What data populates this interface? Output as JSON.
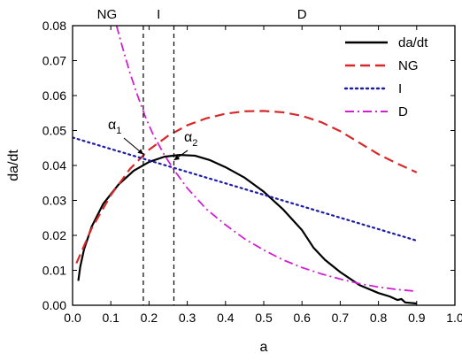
{
  "chart_data": {
    "type": "line",
    "xlabel": "a",
    "ylabel": "da/dt",
    "xlim": [
      0.0,
      1.0
    ],
    "ylim": [
      0.0,
      0.08
    ],
    "x_ticks": [
      "0.0",
      "0.1",
      "0.2",
      "0.3",
      "0.4",
      "0.5",
      "0.6",
      "0.7",
      "0.8",
      "0.9",
      "1.0"
    ],
    "y_ticks": [
      "0.00",
      "0.01",
      "0.02",
      "0.03",
      "0.04",
      "0.05",
      "0.06",
      "0.07",
      "0.08"
    ],
    "grid": false,
    "legend_position": "top-right",
    "regions": [
      {
        "label": "NG",
        "x_center": 0.09
      },
      {
        "label": "I",
        "x_center": 0.225
      },
      {
        "label": "D",
        "x_center": 0.6
      }
    ],
    "vlines": [
      0.185,
      0.265
    ],
    "annotations": [
      {
        "base": "α",
        "sub": "1",
        "x": 0.185,
        "y": 0.0432
      },
      {
        "base": "α",
        "sub": "2",
        "x": 0.265,
        "y": 0.0415
      }
    ],
    "series": [
      {
        "name": "da/dt",
        "color": "#000000",
        "style": "solid",
        "points": [
          [
            0.015,
            0.007
          ],
          [
            0.02,
            0.011
          ],
          [
            0.03,
            0.016
          ],
          [
            0.05,
            0.0225
          ],
          [
            0.08,
            0.029
          ],
          [
            0.12,
            0.0345
          ],
          [
            0.16,
            0.0385
          ],
          [
            0.2,
            0.041
          ],
          [
            0.24,
            0.0425
          ],
          [
            0.28,
            0.043
          ],
          [
            0.32,
            0.0428
          ],
          [
            0.36,
            0.0415
          ],
          [
            0.4,
            0.0395
          ],
          [
            0.45,
            0.0365
          ],
          [
            0.5,
            0.0325
          ],
          [
            0.55,
            0.0275
          ],
          [
            0.6,
            0.0215
          ],
          [
            0.63,
            0.0165
          ],
          [
            0.66,
            0.013
          ],
          [
            0.7,
            0.0095
          ],
          [
            0.75,
            0.0058
          ],
          [
            0.8,
            0.0035
          ],
          [
            0.83,
            0.0025
          ],
          [
            0.85,
            0.0015
          ],
          [
            0.86,
            0.0018
          ],
          [
            0.87,
            0.0008
          ],
          [
            0.9,
            0.0005
          ]
        ]
      },
      {
        "name": "NG",
        "color": "#d62a2a",
        "style": "dash",
        "points": [
          [
            0.01,
            0.012
          ],
          [
            0.05,
            0.022
          ],
          [
            0.1,
            0.0315
          ],
          [
            0.15,
            0.039
          ],
          [
            0.2,
            0.0445
          ],
          [
            0.25,
            0.0485
          ],
          [
            0.3,
            0.0515
          ],
          [
            0.35,
            0.0535
          ],
          [
            0.4,
            0.0548
          ],
          [
            0.45,
            0.0555
          ],
          [
            0.5,
            0.0556
          ],
          [
            0.55,
            0.0552
          ],
          [
            0.6,
            0.0542
          ],
          [
            0.65,
            0.0524
          ],
          [
            0.7,
            0.0498
          ],
          [
            0.75,
            0.0465
          ],
          [
            0.8,
            0.0432
          ],
          [
            0.85,
            0.0405
          ],
          [
            0.9,
            0.038
          ]
        ]
      },
      {
        "name": "I",
        "color": "#1c1ca8",
        "style": "dot",
        "points": [
          [
            0.0,
            0.048
          ],
          [
            0.9,
            0.0185
          ]
        ]
      },
      {
        "name": "D",
        "color": "#d21fd2",
        "style": "dashdot",
        "points": [
          [
            0.115,
            0.08
          ],
          [
            0.13,
            0.074
          ],
          [
            0.15,
            0.0665
          ],
          [
            0.17,
            0.06
          ],
          [
            0.19,
            0.054
          ],
          [
            0.21,
            0.049
          ],
          [
            0.24,
            0.043
          ],
          [
            0.27,
            0.038
          ],
          [
            0.3,
            0.0335
          ],
          [
            0.35,
            0.0275
          ],
          [
            0.4,
            0.023
          ],
          [
            0.45,
            0.019
          ],
          [
            0.5,
            0.0158
          ],
          [
            0.55,
            0.013
          ],
          [
            0.6,
            0.0108
          ],
          [
            0.65,
            0.009
          ],
          [
            0.7,
            0.0075
          ],
          [
            0.75,
            0.0062
          ],
          [
            0.8,
            0.0052
          ],
          [
            0.85,
            0.0045
          ],
          [
            0.9,
            0.004
          ]
        ]
      }
    ]
  }
}
